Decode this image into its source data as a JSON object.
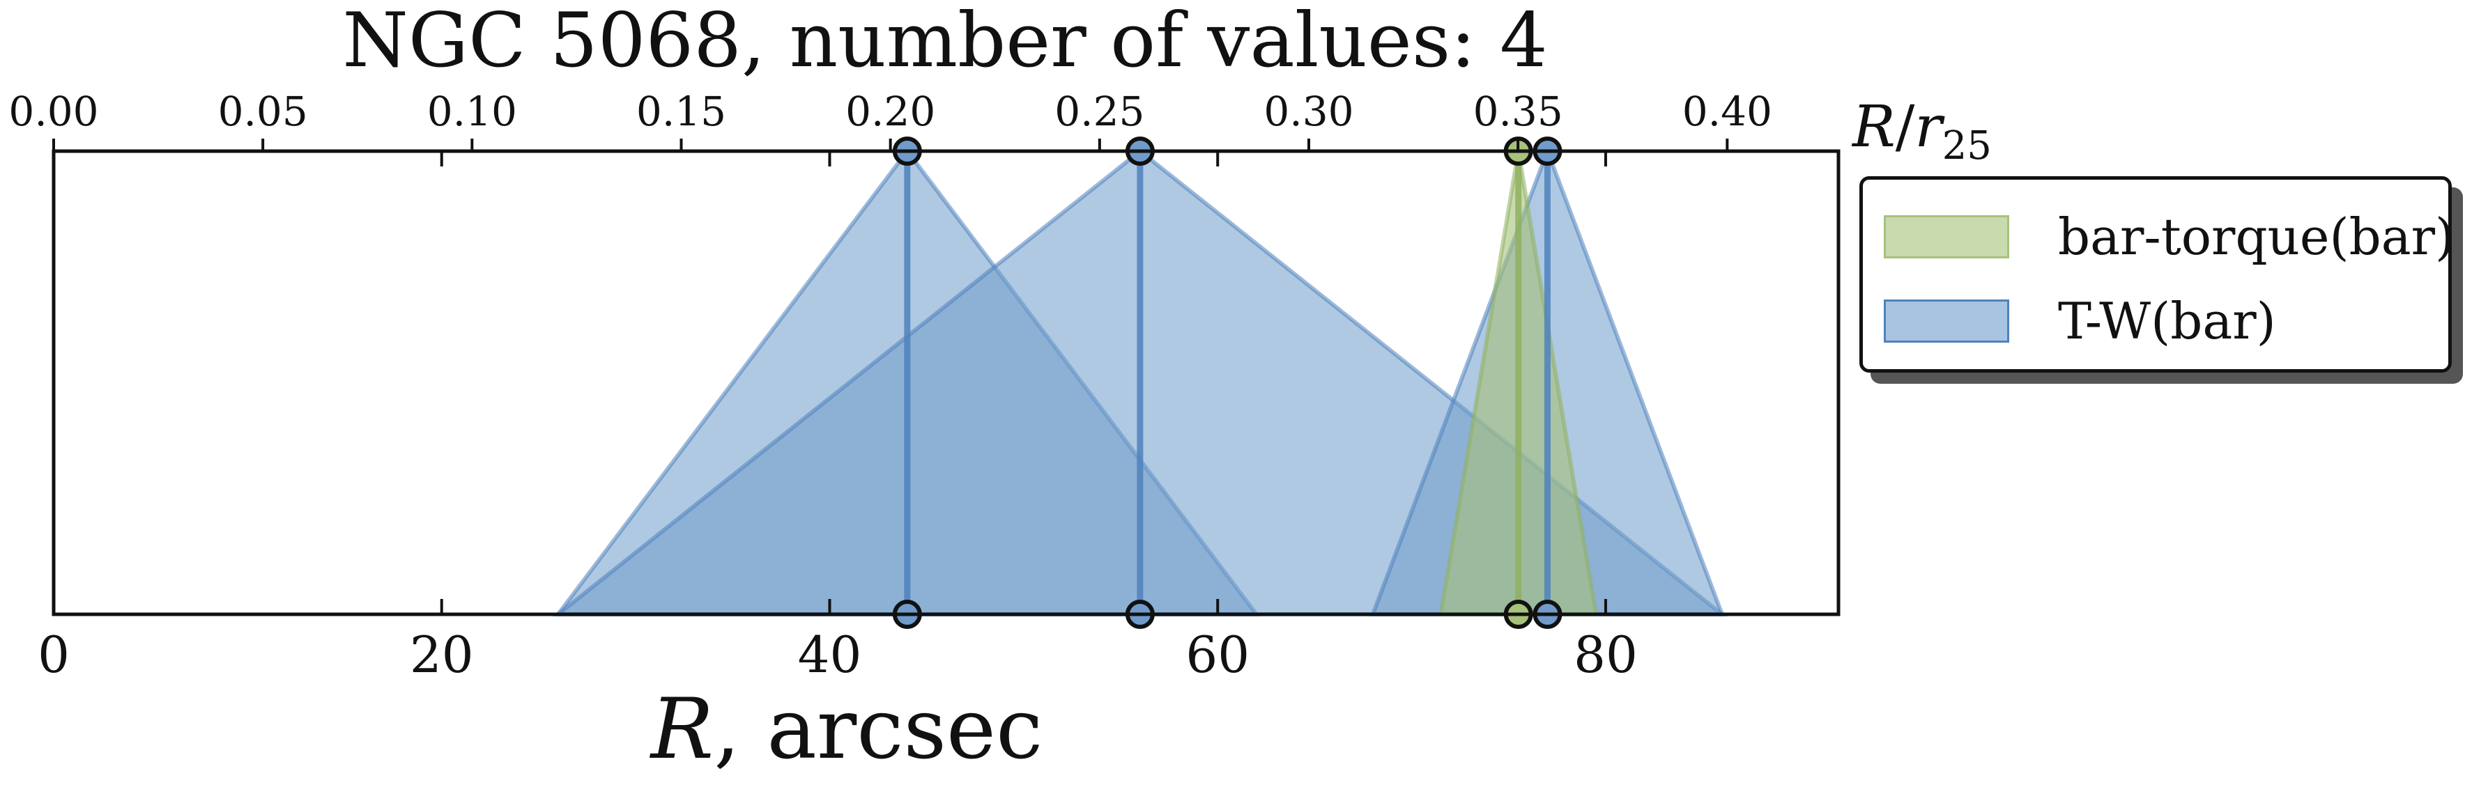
{
  "chart_data": {
    "type": "area",
    "title": "NGC 5068, number of values: 4",
    "xlabel": "R, arcsec",
    "xlabel_top": "R/r25",
    "xlim": [
      0,
      92
    ],
    "xlim_top": [
      0,
      0.4266
    ],
    "xticks": [
      "0",
      "20",
      "40",
      "60",
      "80"
    ],
    "xtick_values": [
      0,
      20,
      40,
      60,
      80
    ],
    "xticks_top": [
      "0.00",
      "0.05",
      "0.10",
      "0.15",
      "0.20",
      "0.25",
      "0.30",
      "0.35",
      "0.40"
    ],
    "xtick_top_values": [
      0.0,
      0.05,
      0.1,
      0.15,
      0.2,
      0.25,
      0.3,
      0.35,
      0.4
    ],
    "grid": false,
    "legend_position": "outside-right",
    "series": [
      {
        "name": "bar-torque(bar)",
        "color": "#a7c27a",
        "edge": "#8fb060",
        "values": [
          {
            "center": 75.5,
            "lower": 71.5,
            "upper": 79.5
          }
        ]
      },
      {
        "name": "T-W(bar)",
        "color": "#6f9ccb",
        "edge": "#4f81bd",
        "values": [
          {
            "center": 44.0,
            "lower": 26.0,
            "upper": 62.0
          },
          {
            "center": 56.0,
            "lower": 26.0,
            "upper": 86.0
          },
          {
            "center": 77.0,
            "lower": 68.0,
            "upper": 86.0
          }
        ]
      }
    ]
  }
}
